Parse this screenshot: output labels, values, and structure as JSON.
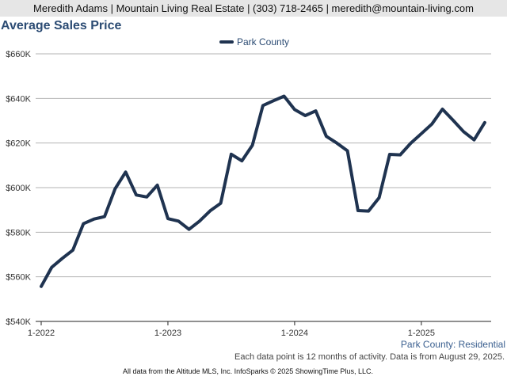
{
  "header": {
    "contact": "Meredith Adams | Mountain Living Real Estate | (303) 718-2465 | meredith@mountain-living.com"
  },
  "chart_data": {
    "type": "line",
    "title": "Average Sales Price",
    "xlabel": "",
    "ylabel": "",
    "ylim": [
      540000,
      660000
    ],
    "y_ticks": [
      540000,
      560000,
      580000,
      600000,
      620000,
      640000,
      660000
    ],
    "y_tick_labels": [
      "$540K",
      "$560K",
      "$580K",
      "$600K",
      "$620K",
      "$640K",
      "$660K"
    ],
    "x_ticks": [
      "1-2022",
      "1-2023",
      "1-2024",
      "1-2025"
    ],
    "x": [
      "1-2022",
      "2-2022",
      "3-2022",
      "4-2022",
      "5-2022",
      "6-2022",
      "7-2022",
      "8-2022",
      "9-2022",
      "10-2022",
      "11-2022",
      "12-2022",
      "1-2023",
      "2-2023",
      "3-2023",
      "4-2023",
      "5-2023",
      "6-2023",
      "7-2023",
      "8-2023",
      "9-2023",
      "10-2023",
      "11-2023",
      "12-2023",
      "1-2024",
      "2-2024",
      "3-2024",
      "4-2024",
      "5-2024",
      "6-2024",
      "7-2024",
      "8-2024",
      "9-2024",
      "10-2024",
      "11-2024",
      "12-2024",
      "1-2025",
      "2-2025",
      "3-2025",
      "4-2025",
      "5-2025",
      "6-2025",
      "7-2025"
    ],
    "series": [
      {
        "name": "Park County",
        "color": "#1f3350",
        "values": [
          555700,
          564300,
          568300,
          572000,
          583800,
          585900,
          587000,
          599500,
          607000,
          596700,
          595800,
          601100,
          586100,
          585000,
          581300,
          585000,
          589600,
          593000,
          615000,
          612000,
          619000,
          636800,
          639000,
          641000,
          635000,
          632300,
          634400,
          623000,
          620000,
          616500,
          589700,
          589500,
          595500,
          614900,
          614700,
          619900,
          624200,
          628500,
          635200,
          630200,
          625100,
          621400,
          629200
        ]
      }
    ],
    "legend": "top-center",
    "grid": true
  },
  "footer": {
    "series_label": "Park County: Residential",
    "note": "Each data point is 12 months of activity. Data is from August 29, 2025.",
    "credit": "All data from the Altitude MLS, Inc. InfoSparks © 2025 ShowingTime Plus, LLC."
  }
}
